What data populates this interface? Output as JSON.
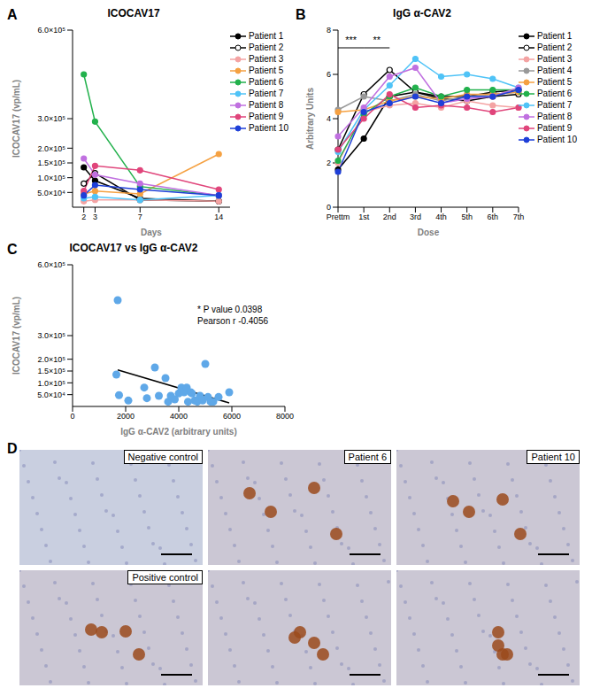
{
  "chart_data": [
    {
      "panel": "A",
      "type": "line",
      "title": "ICOCAV17",
      "x_label": "Days",
      "y_label": "ICOCAV17 (vp/mL)",
      "x": [
        2,
        3,
        7,
        14
      ],
      "xlim": [
        1,
        15
      ],
      "xticks": [
        2,
        3,
        7,
        14
      ],
      "ylim": [
        0,
        600000
      ],
      "yticks": [
        {
          "value": 50000,
          "label": "5.0×10⁴"
        },
        {
          "value": 100000,
          "label": "1.0×10⁵"
        },
        {
          "value": 150000,
          "label": "1.5×10⁵"
        },
        {
          "value": 200000,
          "label": "2.0×10⁵"
        },
        {
          "value": 300000,
          "label": "3.0×10⁵"
        },
        {
          "value": 600000,
          "label": "6.0×10⁵"
        }
      ],
      "legend": "right",
      "series": [
        {
          "name": "Patient 1",
          "color": "#000000",
          "marker": "circle",
          "values": [
            135000,
            90000,
            30000,
            20000
          ]
        },
        {
          "name": "Patient 2",
          "color": "#000000",
          "marker": "open_circle",
          "values": [
            80000,
            115000,
            25000,
            20000
          ]
        },
        {
          "name": "Patient 3",
          "color": "#f4a3a3",
          "marker": "circle",
          "values": [
            20000,
            25000,
            25000,
            20000
          ]
        },
        {
          "name": "Patient 5",
          "color": "#f5a142",
          "marker": "circle",
          "values": [
            45000,
            55000,
            45000,
            180000
          ]
        },
        {
          "name": "Patient 6",
          "color": "#22b14c",
          "marker": "circle",
          "values": [
            450000,
            290000,
            70000,
            40000
          ]
        },
        {
          "name": "Patient 7",
          "color": "#4fc3f7",
          "marker": "circle",
          "values": [
            30000,
            35000,
            25000,
            40000
          ]
        },
        {
          "name": "Patient 8",
          "color": "#c070e0",
          "marker": "circle",
          "values": [
            165000,
            110000,
            80000,
            40000
          ]
        },
        {
          "name": "Patient 9",
          "color": "#e0457b",
          "marker": "circle",
          "values": [
            55000,
            140000,
            125000,
            60000
          ]
        },
        {
          "name": "Patient 10",
          "color": "#1e3fd8",
          "marker": "circle",
          "values": [
            40000,
            75000,
            60000,
            40000
          ]
        }
      ]
    },
    {
      "panel": "B",
      "type": "line",
      "title": "IgG α-CAV2",
      "x_label": "Dose",
      "y_label": "Arbitrary Units",
      "categories": [
        "Prettm",
        "1st",
        "2nd",
        "3rd",
        "4th",
        "5th",
        "6th",
        "7th"
      ],
      "ylim": [
        0,
        8
      ],
      "yticks": [
        0,
        2,
        4,
        6,
        8
      ],
      "legend": "right",
      "significance": [
        {
          "text": "***",
          "from": "Prettm",
          "to": "1st"
        },
        {
          "text": "**",
          "from": "1st",
          "to": "2nd"
        }
      ],
      "series": [
        {
          "name": "Patient 1",
          "color": "#000000",
          "marker": "circle",
          "values": [
            1.7,
            3.1,
            5.0,
            5.2,
            5.0,
            5.0,
            5.2,
            5.3
          ]
        },
        {
          "name": "Patient 2",
          "color": "#000000",
          "marker": "open_circle",
          "values": [
            2.6,
            5.1,
            6.2,
            5.2,
            4.9,
            4.8,
            5.0,
            5.1
          ]
        },
        {
          "name": "Patient 3",
          "color": "#f4a3a3",
          "marker": "circle",
          "values": [
            2.0,
            4.3,
            4.6,
            4.7,
            4.5,
            4.8,
            4.6,
            4.5
          ]
        },
        {
          "name": "Patient 4",
          "color": "#999999",
          "marker": "circle",
          "values": [
            4.4,
            5.0,
            4.8,
            5.1,
            4.8,
            5.0,
            5.1,
            5.2
          ]
        },
        {
          "name": "Patient 5",
          "color": "#f5a142",
          "marker": "circle",
          "values": [
            4.3,
            4.4,
            4.8,
            5.0,
            4.9,
            5.1,
            5.1,
            5.2
          ]
        },
        {
          "name": "Patient 6",
          "color": "#22b14c",
          "marker": "circle",
          "values": [
            2.1,
            4.2,
            5.0,
            5.4,
            5.0,
            5.3,
            5.3,
            5.3
          ]
        },
        {
          "name": "Patient 7",
          "color": "#4fc3f7",
          "marker": "circle",
          "values": [
            2.5,
            4.4,
            5.5,
            6.7,
            5.9,
            6.0,
            5.8,
            5.4
          ]
        },
        {
          "name": "Patient 8",
          "color": "#c070e0",
          "marker": "circle",
          "values": [
            3.2,
            4.5,
            5.9,
            6.3,
            4.7,
            4.9,
            5.0,
            5.4
          ]
        },
        {
          "name": "Patient 9",
          "color": "#e0457b",
          "marker": "circle",
          "values": [
            2.6,
            4.0,
            5.1,
            4.5,
            4.6,
            4.5,
            4.3,
            4.5
          ]
        },
        {
          "name": "Patient 10",
          "color": "#1e3fd8",
          "marker": "circle",
          "values": [
            1.6,
            4.3,
            4.7,
            5.0,
            4.7,
            5.0,
            5.0,
            5.3
          ]
        }
      ]
    },
    {
      "panel": "C",
      "type": "scatter",
      "title": "ICOCAV17 vs IgG α-CAV2",
      "x_label": "IgG α-CAV2 (arbitrary units)",
      "y_label": "ICOCAV17 (vp/mL)",
      "x": [
        1650,
        1700,
        1750,
        2100,
        2700,
        2800,
        3100,
        3250,
        3500,
        3600,
        3700,
        3850,
        4000,
        4100,
        4200,
        4300,
        4350,
        4450,
        4500,
        4600,
        4650,
        4700,
        4800,
        4900,
        5000,
        5100,
        5200,
        5300,
        5500,
        5900
      ],
      "values": [
        135000,
        450000,
        48000,
        25000,
        80000,
        35000,
        165000,
        45000,
        120000,
        20000,
        45000,
        30000,
        55000,
        80000,
        60000,
        80000,
        20000,
        60000,
        55000,
        25000,
        25000,
        20000,
        45000,
        25000,
        180000,
        40000,
        20000,
        20000,
        40000,
        60000
      ],
      "color": "#5fa8e8",
      "xlim": [
        0,
        8000
      ],
      "xticks": [
        0,
        2000,
        4000,
        6000,
        8000
      ],
      "ylim": [
        0,
        600000
      ],
      "yticks": [
        {
          "value": 50000,
          "label": "5.0×10⁴"
        },
        {
          "value": 100000,
          "label": "1.0×10⁵"
        },
        {
          "value": 150000,
          "label": "1.5×10⁵"
        },
        {
          "value": 200000,
          "label": "2.0×10⁵"
        },
        {
          "value": 300000,
          "label": "3.0×10⁵"
        },
        {
          "value": 600000,
          "label": "6.0×10⁵"
        }
      ],
      "regression": {
        "x": [
          1700,
          5900
        ],
        "y": [
          155000,
          15000
        ]
      },
      "annotations": [
        "* P value 0.0398",
        "Pearson r -0.4056"
      ]
    }
  ],
  "images": {
    "panel": "D",
    "labels": [
      [
        "Negative control",
        "Patient 6",
        "Patient 10"
      ],
      [
        "Positive control",
        null,
        null
      ]
    ]
  }
}
